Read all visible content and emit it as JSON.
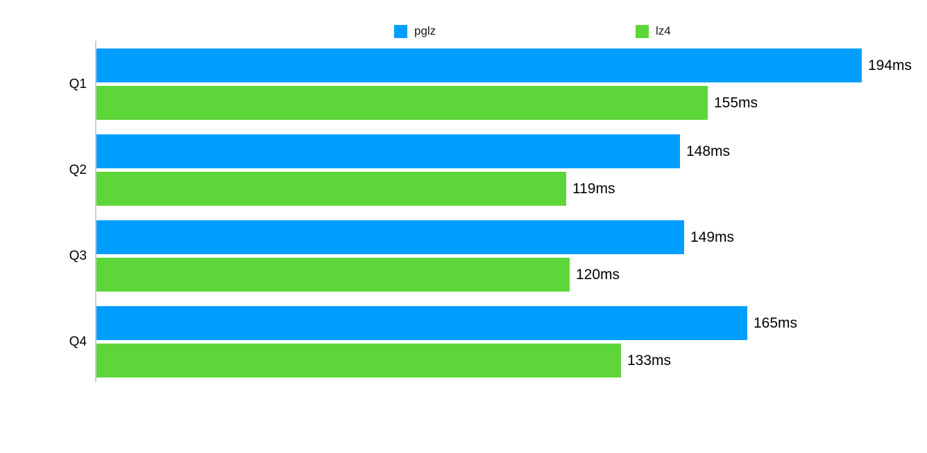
{
  "chart_data": {
    "type": "bar",
    "orientation": "horizontal",
    "title": "",
    "categories": [
      "Q1",
      "Q2",
      "Q3",
      "Q4"
    ],
    "series": [
      {
        "name": "pglz",
        "color": "#009FFF",
        "values": [
          194,
          148,
          149,
          165
        ]
      },
      {
        "name": "lz4",
        "color": "#5DD63A",
        "values": [
          155,
          119,
          120,
          133
        ]
      }
    ],
    "unit": "ms",
    "value_labels": {
      "pglz": [
        "194ms",
        "148ms",
        "149ms",
        "165ms"
      ],
      "lz4": [
        "155ms",
        "119ms",
        "120ms",
        "133ms"
      ]
    },
    "legend_position": "top",
    "grid": false,
    "axis_color": "#cccccc",
    "background": "#ffffff"
  },
  "legend": {
    "items": [
      {
        "label": "pglz",
        "color": "#009FFF"
      },
      {
        "label": "lz4",
        "color": "#5DD63A"
      }
    ]
  }
}
